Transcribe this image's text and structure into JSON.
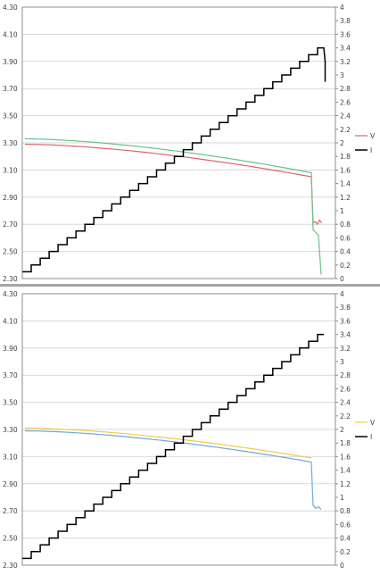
{
  "chart_data": [
    {
      "type": "line",
      "title": "",
      "xlabel": "",
      "ylabel": "",
      "ylim": [
        2.3,
        4.3
      ],
      "y2lim": [
        0,
        4
      ],
      "yticks": [
        "4.30",
        "4.10",
        "3.90",
        "3.70",
        "3.50",
        "3.30",
        "3.10",
        "2.90",
        "2.70",
        "2.50",
        "2.30"
      ],
      "y2ticks": [
        "4",
        "3.8",
        "3.6",
        "3.4",
        "3.2",
        "3",
        "2.8",
        "2.6",
        "2.4",
        "2.2",
        "2",
        "1.8",
        "1.6",
        "1.4",
        "1.2",
        "1",
        "0.8",
        "0.6",
        "0.4",
        "0.2",
        "0"
      ],
      "grid": true,
      "legend": "right",
      "steps": {
        "start": 0.1,
        "end": 3.4,
        "step": 0.1
      },
      "series": [
        {
          "name": "V",
          "axis": "left",
          "color": "#e06666",
          "start": 3.29,
          "end": 3.05,
          "curve": 1.6,
          "tail": [
            2.71,
            2.72,
            2.7,
            2.73,
            2.71
          ]
        },
        {
          "name": "",
          "axis": "left",
          "color": "#6cc08b",
          "start": 3.33,
          "end": 3.08,
          "curve": 1.6,
          "tail": [
            2.66,
            2.64,
            2.62,
            2.33
          ]
        },
        {
          "name": "I",
          "axis": "right",
          "color": "#000000",
          "kind": "staircase"
        }
      ]
    },
    {
      "type": "line",
      "title": "",
      "xlabel": "",
      "ylabel": "",
      "ylim": [
        2.3,
        4.3
      ],
      "y2lim": [
        0,
        4
      ],
      "yticks": [
        "4.30",
        "4.10",
        "3.90",
        "3.70",
        "3.50",
        "3.30",
        "3.10",
        "2.90",
        "2.70",
        "2.50",
        "2.30"
      ],
      "y2ticks": [
        "4",
        "3.8",
        "3.6",
        "3.4",
        "3.2",
        "3",
        "2.8",
        "2.6",
        "2.4",
        "2.2",
        "2",
        "1.8",
        "1.6",
        "1.4",
        "1.2",
        "1",
        "0.8",
        "0.6",
        "0.4",
        "0.2",
        "0"
      ],
      "grid": true,
      "legend": "right",
      "steps": {
        "start": 0.1,
        "end": 3.4,
        "step": 0.1
      },
      "series": [
        {
          "name": "V",
          "axis": "left",
          "color": "#f2c94c",
          "start": 3.31,
          "end": 3.09,
          "curve": 1.6,
          "tail": []
        },
        {
          "name": "",
          "axis": "left",
          "color": "#6fa8dc",
          "start": 3.29,
          "end": 3.06,
          "curve": 1.6,
          "tail": [
            2.74,
            2.72,
            2.73,
            2.71
          ]
        },
        {
          "name": "I",
          "axis": "right",
          "color": "#000000",
          "kind": "staircase"
        }
      ]
    }
  ]
}
